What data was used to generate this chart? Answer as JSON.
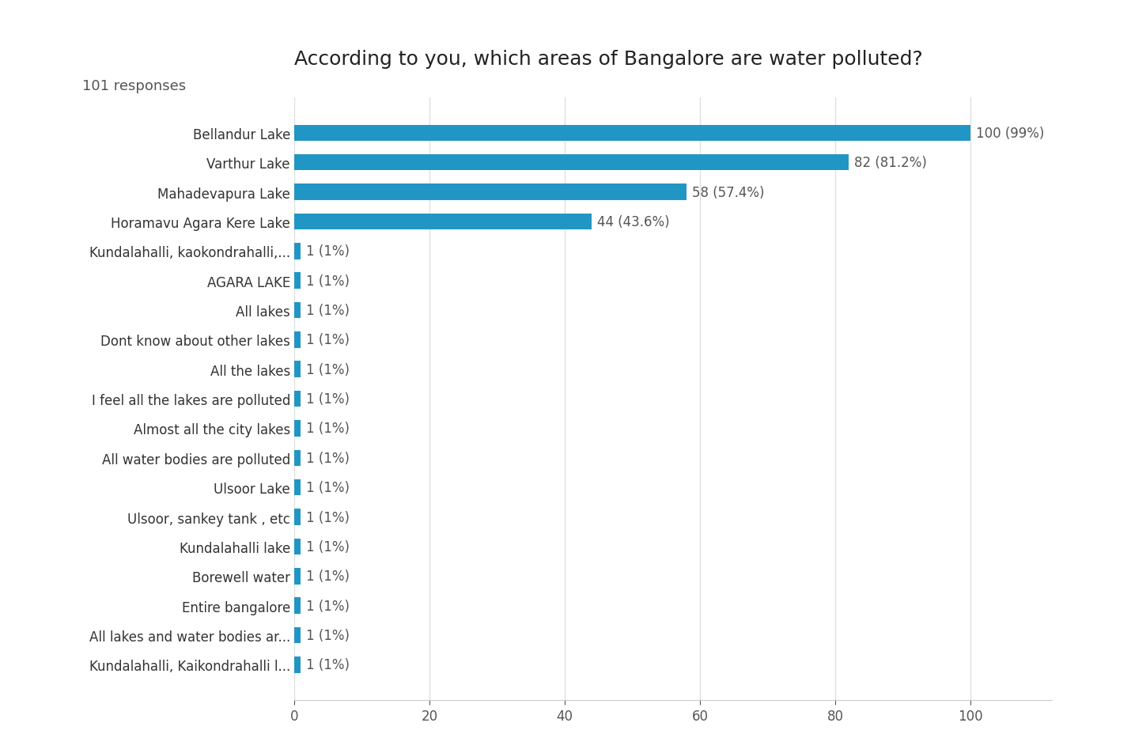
{
  "title": "According to you, which areas of Bangalore are water polluted?",
  "subtitle": "101 responses",
  "categories": [
    "Kundalahalli, Kaikondrahalli l...",
    "All lakes and water bodies ar...",
    "Entire bangalore",
    "Borewell water",
    "Kundalahalli lake",
    "Ulsoor, sankey tank , etc",
    "Ulsoor Lake",
    "All water bodies are polluted",
    "Almost all the city lakes",
    "I feel all the lakes are polluted",
    "All the lakes",
    "Dont know about other lakes",
    "All lakes",
    "AGARA LAKE",
    "Kundalahalli, kaokondrahalli,...",
    "Horamavu Agara Kere Lake",
    "Mahadevapura Lake",
    "Varthur Lake",
    "Bellandur Lake"
  ],
  "values": [
    1,
    1,
    1,
    1,
    1,
    1,
    1,
    1,
    1,
    1,
    1,
    1,
    1,
    1,
    1,
    44,
    58,
    82,
    100
  ],
  "labels": [
    "1 (1%)",
    "1 (1%)",
    "1 (1%)",
    "1 (1%)",
    "1 (1%)",
    "1 (1%)",
    "1 (1%)",
    "1 (1%)",
    "1 (1%)",
    "1 (1%)",
    "1 (1%)",
    "1 (1%)",
    "1 (1%)",
    "1 (1%)",
    "1 (1%)",
    "44 (43.6%)",
    "58 (57.4%)",
    "82 (81.2%)",
    "100 (99%)"
  ],
  "bar_color": "#2196c4",
  "background_color": "#ffffff",
  "grid_color": "#e0e0e0",
  "title_fontsize": 18,
  "subtitle_fontsize": 13,
  "label_fontsize": 12,
  "tick_fontsize": 12,
  "xlim": [
    0,
    112
  ],
  "xticks": [
    0,
    20,
    40,
    60,
    80,
    100
  ]
}
